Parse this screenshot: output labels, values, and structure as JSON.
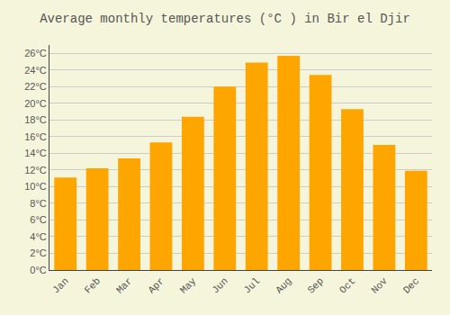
{
  "chart_data": {
    "type": "bar",
    "title": "Average monthly temperatures (°C ) in Bir el Djir",
    "categories": [
      "Jan",
      "Feb",
      "Mar",
      "Apr",
      "May",
      "Jun",
      "Jul",
      "Aug",
      "Sep",
      "Oct",
      "Nov",
      "Dec"
    ],
    "values": [
      11.1,
      12.2,
      13.4,
      15.3,
      18.4,
      22.0,
      24.9,
      25.7,
      23.4,
      19.3,
      15.0,
      11.9
    ],
    "color": "#FFA500",
    "ylim": [
      0,
      27
    ],
    "yticks": [
      {
        "value": 0,
        "label": "0°C"
      },
      {
        "value": 2,
        "label": "2°C"
      },
      {
        "value": 4,
        "label": "4°C"
      },
      {
        "value": 6,
        "label": "6°C"
      },
      {
        "value": 8,
        "label": "8°C"
      },
      {
        "value": 10,
        "label": "10°C"
      },
      {
        "value": 12,
        "label": "12°C"
      },
      {
        "value": 14,
        "label": "14°C"
      },
      {
        "value": 16,
        "label": "16°C"
      },
      {
        "value": 18,
        "label": "18°C"
      },
      {
        "value": 20,
        "label": "20°C"
      },
      {
        "value": 22,
        "label": "22°C"
      },
      {
        "value": 24,
        "label": "24°C"
      },
      {
        "value": 26,
        "label": "26°C"
      }
    ],
    "grid": true
  }
}
